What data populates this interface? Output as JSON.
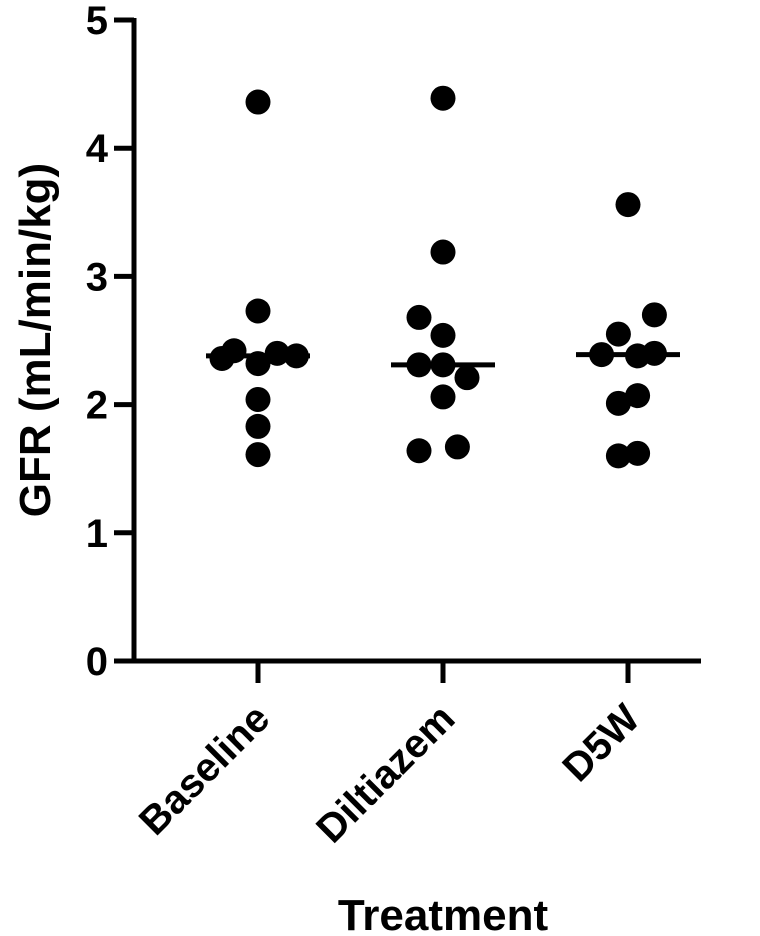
{
  "chart_data": {
    "type": "scatter",
    "xlabel": "Treatment",
    "ylabel": "GFR (mL/min/kg)",
    "ylim": [
      0,
      5
    ],
    "yticks": [
      0,
      1,
      2,
      3,
      4,
      5
    ],
    "categories": [
      "Baseline",
      "Diltiazem",
      "D5W"
    ],
    "grid": false,
    "legend": "none",
    "point_color": "#000000",
    "series": [
      {
        "category": "Baseline",
        "median": 2.38,
        "points": [
          {
            "offset": 0,
            "y": 4.36
          },
          {
            "offset": 0,
            "y": 2.73
          },
          {
            "offset": -1.5,
            "y": 2.36
          },
          {
            "offset": -1,
            "y": 2.42
          },
          {
            "offset": 0,
            "y": 2.32
          },
          {
            "offset": 0.8,
            "y": 2.4
          },
          {
            "offset": 1.6,
            "y": 2.38
          },
          {
            "offset": 0,
            "y": 2.04
          },
          {
            "offset": 0,
            "y": 1.83
          },
          {
            "offset": 0,
            "y": 1.61
          }
        ]
      },
      {
        "category": "Diltiazem",
        "median": 2.31,
        "points": [
          {
            "offset": 0,
            "y": 4.39
          },
          {
            "offset": 0,
            "y": 3.19
          },
          {
            "offset": -1,
            "y": 2.68
          },
          {
            "offset": 0,
            "y": 2.54
          },
          {
            "offset": -1,
            "y": 2.31
          },
          {
            "offset": 0,
            "y": 2.31
          },
          {
            "offset": 1,
            "y": 2.21
          },
          {
            "offset": 0,
            "y": 2.06
          },
          {
            "offset": -1,
            "y": 1.64
          },
          {
            "offset": 0.6,
            "y": 1.67
          }
        ]
      },
      {
        "category": "D5W",
        "median": 2.39,
        "points": [
          {
            "offset": 0,
            "y": 3.56
          },
          {
            "offset": -0.4,
            "y": 2.55
          },
          {
            "offset": 1.1,
            "y": 2.7
          },
          {
            "offset": -1.1,
            "y": 2.39
          },
          {
            "offset": 0.4,
            "y": 2.38
          },
          {
            "offset": 1.1,
            "y": 2.4
          },
          {
            "offset": -0.4,
            "y": 2.01
          },
          {
            "offset": 0.4,
            "y": 2.07
          },
          {
            "offset": -0.4,
            "y": 1.6
          },
          {
            "offset": 0.4,
            "y": 1.62
          }
        ]
      }
    ]
  }
}
